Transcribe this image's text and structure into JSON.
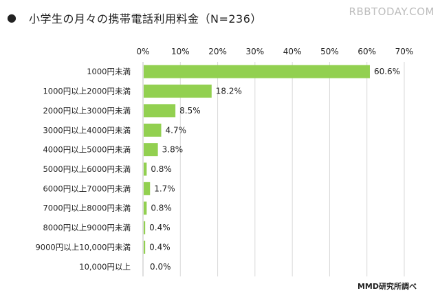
{
  "header": {
    "bullet": "●",
    "title": "小学生の月々の携帯電話利用料金（N=236）"
  },
  "watermark": "RBBTODAY.COM",
  "source": "MMD研究所調べ",
  "colors": {
    "bar": "#92d050",
    "grid": "#d9d9d9",
    "axis": "#bfbfbf"
  },
  "chart_data": {
    "type": "bar",
    "orientation": "horizontal",
    "title": "小学生の月々の携帯電話利用料金（N=236）",
    "categories": [
      "1000円未満",
      "1000円以上2000円未満",
      "2000円以上3000円未満",
      "3000円以上4000円未満",
      "4000円以上5000円未満",
      "5000円以上6000円未満",
      "6000円以上7000円未満",
      "7000円以上8000円未満",
      "8000円以上9000円未満",
      "9000円以上10,000円未満",
      "10,000円以上"
    ],
    "values": [
      60.6,
      18.2,
      8.5,
      4.7,
      3.8,
      0.8,
      1.7,
      0.8,
      0.4,
      0.4,
      0.0
    ],
    "value_labels": [
      "60.6%",
      "18.2%",
      "8.5%",
      "4.7%",
      "3.8%",
      "0.8%",
      "1.7%",
      "0.8%",
      "0.4%",
      "0.4%",
      "0.0%"
    ],
    "xlim": [
      0,
      70
    ],
    "x_ticks": [
      0,
      10,
      20,
      30,
      40,
      50,
      60,
      70
    ],
    "x_tick_labels": [
      "0%",
      "10%",
      "20%",
      "30%",
      "40%",
      "50%",
      "60%",
      "70%"
    ],
    "xaxis_position": "top",
    "grid": true
  }
}
